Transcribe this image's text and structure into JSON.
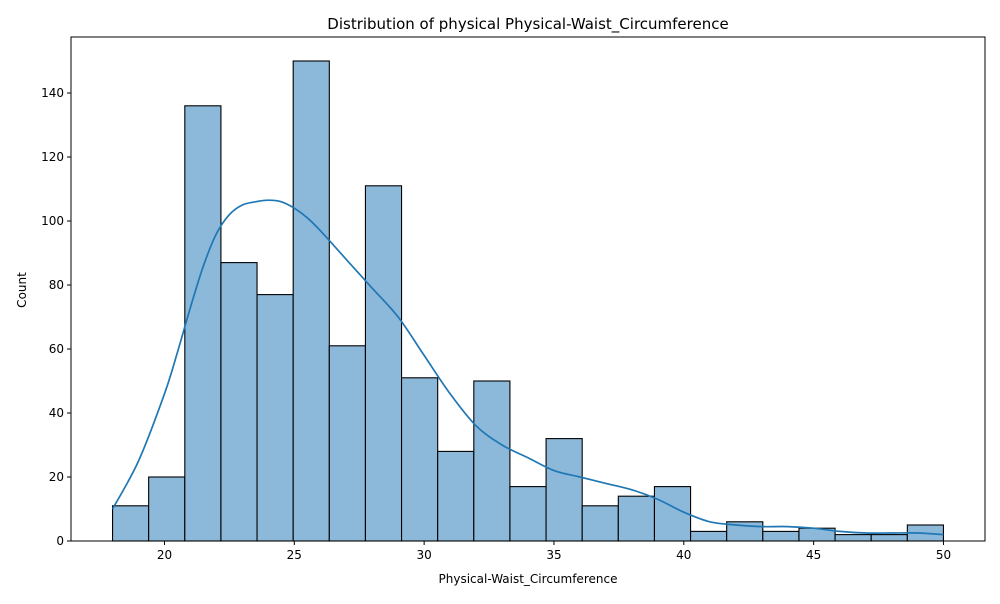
{
  "chart_data": {
    "type": "bar",
    "subtype": "histogram-with-kde",
    "title": "Distribution of physical Physical-Waist_Circumference",
    "xlabel": "Physical-Waist_Circumference",
    "ylabel": "Count",
    "xlim": [
      16.4,
      51.6
    ],
    "ylim": [
      0,
      157.5
    ],
    "xticks": [
      20,
      25,
      30,
      35,
      40,
      45,
      50
    ],
    "yticks": [
      0,
      20,
      40,
      60,
      80,
      100,
      120,
      140
    ],
    "bins": [
      {
        "x0": 18.0,
        "x1": 19.391,
        "count": 11
      },
      {
        "x0": 19.391,
        "x1": 20.783,
        "count": 20
      },
      {
        "x0": 20.783,
        "x1": 22.174,
        "count": 136
      },
      {
        "x0": 22.174,
        "x1": 23.565,
        "count": 87
      },
      {
        "x0": 23.565,
        "x1": 24.957,
        "count": 77
      },
      {
        "x0": 24.957,
        "x1": 26.348,
        "count": 150
      },
      {
        "x0": 26.348,
        "x1": 27.739,
        "count": 61
      },
      {
        "x0": 27.739,
        "x1": 29.13,
        "count": 111
      },
      {
        "x0": 29.13,
        "x1": 30.522,
        "count": 51
      },
      {
        "x0": 30.522,
        "x1": 31.913,
        "count": 28
      },
      {
        "x0": 31.913,
        "x1": 33.304,
        "count": 50
      },
      {
        "x0": 33.304,
        "x1": 34.696,
        "count": 17
      },
      {
        "x0": 34.696,
        "x1": 36.087,
        "count": 32
      },
      {
        "x0": 36.087,
        "x1": 37.478,
        "count": 11
      },
      {
        "x0": 37.478,
        "x1": 38.87,
        "count": 14
      },
      {
        "x0": 38.87,
        "x1": 40.261,
        "count": 17
      },
      {
        "x0": 40.261,
        "x1": 41.652,
        "count": 3
      },
      {
        "x0": 41.652,
        "x1": 43.043,
        "count": 6
      },
      {
        "x0": 43.043,
        "x1": 44.435,
        "count": 3
      },
      {
        "x0": 44.435,
        "x1": 45.826,
        "count": 4
      },
      {
        "x0": 45.826,
        "x1": 47.217,
        "count": 2
      },
      {
        "x0": 47.217,
        "x1": 48.609,
        "count": 2
      },
      {
        "x0": 48.609,
        "x1": 50.0,
        "count": 5
      }
    ],
    "kde": {
      "x": [
        18,
        19,
        20,
        20.5,
        21,
        21.5,
        22,
        22.5,
        23,
        23.5,
        24,
        24.5,
        25,
        25.5,
        26,
        27,
        28,
        29,
        30,
        31,
        32,
        33,
        34,
        35,
        36,
        37,
        38,
        39,
        40,
        41,
        42,
        43,
        44,
        45,
        46,
        47,
        48,
        49,
        50
      ],
      "y": [
        10,
        25,
        46,
        59,
        73,
        86,
        96,
        102,
        105,
        106,
        106.5,
        106,
        104,
        101,
        97,
        88,
        79,
        70,
        58,
        46,
        36,
        30,
        26,
        22,
        20,
        18,
        16,
        13,
        9,
        6,
        5,
        4.5,
        4.5,
        4,
        3,
        2.5,
        2.5,
        2.5,
        2
      ]
    },
    "colors": {
      "bar_fill": "#8cb8da",
      "bar_edge": "#000000",
      "kde_line": "#1f77b4",
      "axis": "#000000"
    },
    "grid": false,
    "legend": "none"
  }
}
